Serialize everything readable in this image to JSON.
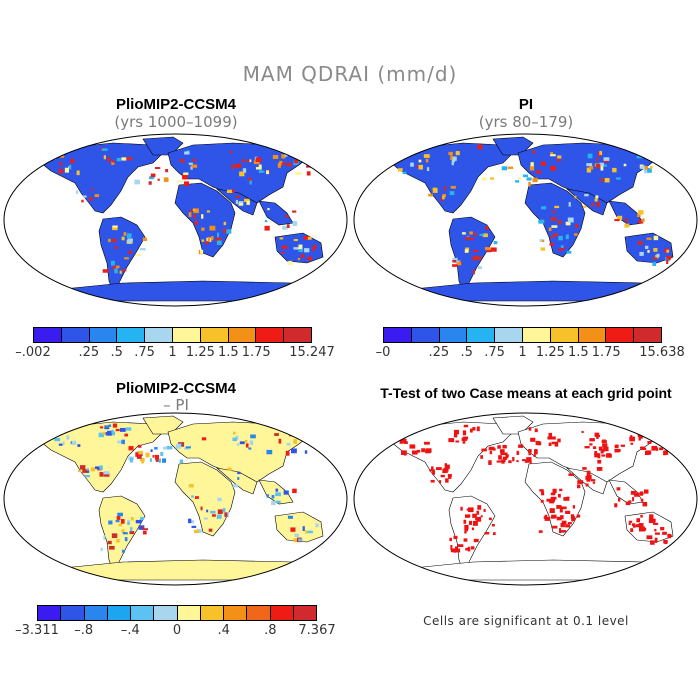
{
  "title": "MAM QDRAI (mm/d)",
  "panels": {
    "tl": {
      "title": "PlioMIP2-CCSM4",
      "subtitle": "(yrs 1000–1099)"
    },
    "tr": {
      "title": "PI",
      "subtitle": "(yrs 80–179)"
    },
    "bl": {
      "title": "PlioMIP2-CCSM4",
      "subtitle": "– PI"
    },
    "br": {
      "title": "T-Test of two Case means at each grid point"
    }
  },
  "colorbars": {
    "tl": {
      "labels": [
        "–.002",
        ".25",
        ".5",
        ".75",
        "1",
        "1.25",
        "1.5",
        "1.75",
        "15.247"
      ]
    },
    "tr": {
      "labels": [
        "–0",
        ".25",
        ".5",
        ".75",
        "1",
        "1.25",
        "1.5",
        "1.75",
        "15.638"
      ]
    },
    "bl": {
      "labels": [
        "–3.311",
        "–.8",
        "–.4",
        "0",
        ".4",
        ".8",
        "7.367"
      ]
    }
  },
  "colors": {
    "seq": [
      "#3a1cf0",
      "#2f55e8",
      "#2a86ee",
      "#25b3f2",
      "#a7d6ee",
      "#fff69a",
      "#f7c229",
      "#f29017",
      "#ee1c14",
      "#d12a2c"
    ],
    "div": [
      "#3a1cf0",
      "#2f55e8",
      "#2a86ee",
      "#1ea5ef",
      "#5cc2f2",
      "#a7d6ee",
      "#fff69a",
      "#f7c229",
      "#f29017",
      "#f0661a",
      "#ee1c14",
      "#d12a2c"
    ],
    "ocean": "#ffffff",
    "land_base_seq": "#2f55e8",
    "land_base_diff": "#fff69a",
    "signif": "#ee1212"
  },
  "footnote": "Cells are significant at 0.1 level"
}
